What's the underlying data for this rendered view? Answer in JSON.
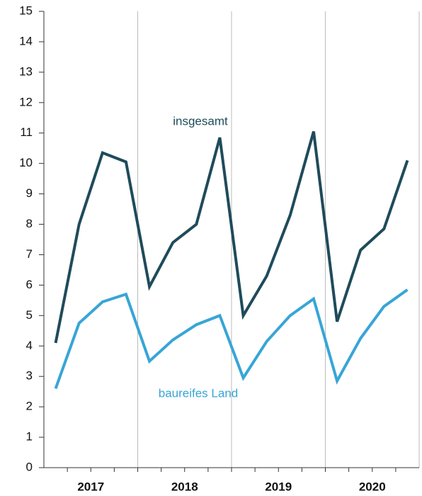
{
  "chart_data": {
    "type": "line",
    "categories": [
      null,
      null,
      null,
      null,
      null,
      null,
      null,
      null,
      null,
      null,
      null,
      null,
      null,
      null,
      null,
      null
    ],
    "year_labels": [
      "2017",
      "2018",
      "2019",
      "2020"
    ],
    "series": [
      {
        "name": "insgesamt",
        "color": "#1f4b5b",
        "values": [
          4.1,
          8.0,
          10.35,
          10.05,
          5.95,
          7.4,
          8.0,
          10.85,
          5.0,
          6.3,
          8.3,
          11.05,
          4.8,
          7.15,
          7.85,
          10.1
        ]
      },
      {
        "name": "baureifes Land",
        "color": "#38a5d6",
        "values": [
          2.6,
          4.75,
          5.45,
          5.7,
          3.5,
          4.2,
          4.7,
          5.0,
          2.95,
          4.15,
          5.0,
          5.55,
          2.85,
          4.25,
          5.3,
          5.85
        ]
      }
    ],
    "ylim": [
      0,
      15
    ],
    "yticks": [
      0,
      1,
      2,
      3,
      4,
      5,
      6,
      7,
      8,
      9,
      10,
      11,
      12,
      13,
      14,
      15
    ],
    "grid": true
  }
}
